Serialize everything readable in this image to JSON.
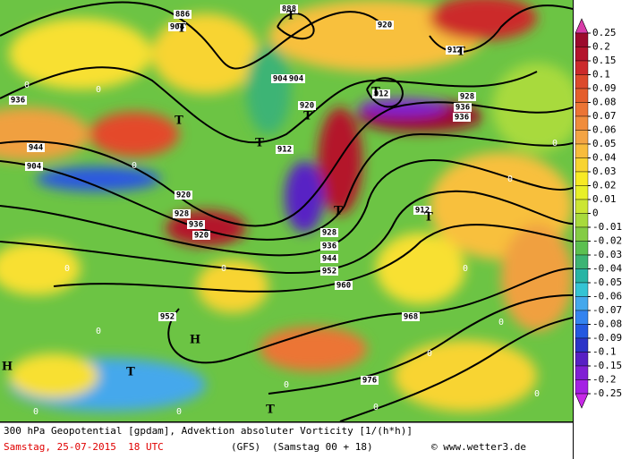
{
  "colorbar": {
    "levels": [
      0.25,
      0.2,
      0.15,
      0.1,
      0.09,
      0.08,
      0.07,
      0.06,
      0.05,
      0.04,
      0.03,
      0.02,
      0.01,
      0,
      -0.01,
      -0.02,
      -0.03,
      -0.04,
      -0.05,
      -0.06,
      -0.07,
      -0.08,
      -0.09,
      -0.1,
      -0.15,
      -0.2,
      -0.25
    ],
    "colors": [
      "#d83ca8",
      "#9c0a2c",
      "#b4142c",
      "#cc2a2c",
      "#dc4a2c",
      "#e45e2c",
      "#ec7434",
      "#f08c3c",
      "#f4a444",
      "#f8bc3c",
      "#f8d430",
      "#f8ea24",
      "#e8f028",
      "#cce634",
      "#a8da3c",
      "#84cc44",
      "#5cc050",
      "#3cb474",
      "#28b4a4",
      "#34c4d4",
      "#44a8ec",
      "#3484f0",
      "#2458e0",
      "#2c34c8",
      "#5820c4",
      "#8020d4",
      "#a420e4",
      "#c828e8"
    ]
  },
  "map": {
    "contour_labels": [
      "886",
      "888",
      "920",
      "912",
      "904",
      "904",
      "904",
      "920",
      "928",
      "936",
      "936",
      "936",
      "944",
      "904",
      "912",
      "920",
      "928",
      "936",
      "920",
      "928",
      "936",
      "944",
      "952",
      "960",
      "968",
      "976",
      "952",
      "912",
      "912"
    ],
    "pressure_centers": [
      "T",
      "T",
      "T",
      "T",
      "T",
      "T",
      "T",
      "T",
      "T",
      "T",
      "T",
      "H",
      "H"
    ],
    "zero_labels": [
      "0",
      "0",
      "0",
      "0",
      "0",
      "0",
      "0",
      "0",
      "0",
      "0",
      "0",
      "0",
      "0",
      "0",
      "0",
      "0"
    ]
  },
  "footer": {
    "title": "300 hPa Geopotential [gpdam], Advektion absoluter Vorticity [1/(h*h)]",
    "date": "Samstag, 25-07-2015  18 UTC",
    "model": "(GFS)",
    "run": "(Samstag 00 + 18)",
    "credit": "© www.wetter3.de"
  }
}
